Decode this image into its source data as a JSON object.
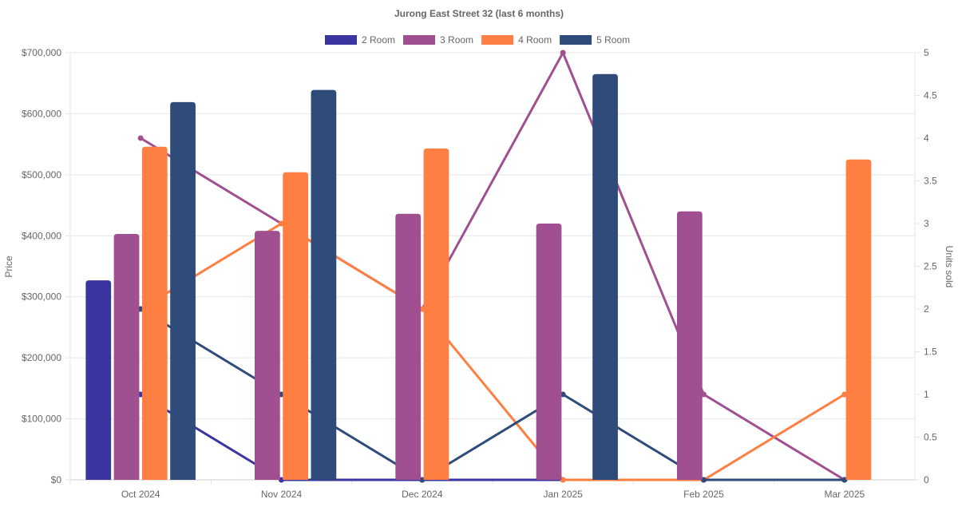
{
  "chart_data": {
    "type": "bar",
    "title": "Jurong East Street 32 (last 6 months)",
    "categories": [
      "Oct 2024",
      "Nov 2024",
      "Dec 2024",
      "Jan 2025",
      "Feb 2025",
      "Mar 2025"
    ],
    "ylabel": "Price",
    "y2label": "Units sold",
    "ylim": [
      0,
      700000
    ],
    "y2lim": [
      0,
      5
    ],
    "yticks": [
      "$0",
      "$100,000",
      "$200,000",
      "$300,000",
      "$400,000",
      "$500,000",
      "$600,000",
      "$700,000"
    ],
    "y2ticks": [
      "0",
      "0.5",
      "1",
      "1.5",
      "2",
      "2.5",
      "3",
      "3.5",
      "4",
      "4.5",
      "5"
    ],
    "legend_position": "top",
    "grid": true,
    "series": [
      {
        "name": "2 Room",
        "color": "#3a35a0",
        "price": [
          327000,
          null,
          null,
          null,
          null,
          null
        ],
        "units": [
          1,
          0,
          0,
          0,
          0,
          0
        ]
      },
      {
        "name": "3 Room",
        "color": "#a05090",
        "price": [
          403000,
          408000,
          436000,
          420000,
          440000,
          null
        ],
        "units": [
          4,
          3,
          2,
          5,
          1,
          0
        ]
      },
      {
        "name": "4 Room",
        "color": "#ff7f42",
        "price": [
          546000,
          504000,
          543000,
          null,
          null,
          525000
        ],
        "units": [
          2,
          3,
          2,
          0,
          0,
          1
        ]
      },
      {
        "name": "5 Room",
        "color": "#2e4b7a",
        "price": [
          619000,
          639000,
          null,
          665000,
          null,
          null
        ],
        "units": [
          2,
          1,
          0,
          1,
          0,
          0
        ]
      }
    ]
  }
}
